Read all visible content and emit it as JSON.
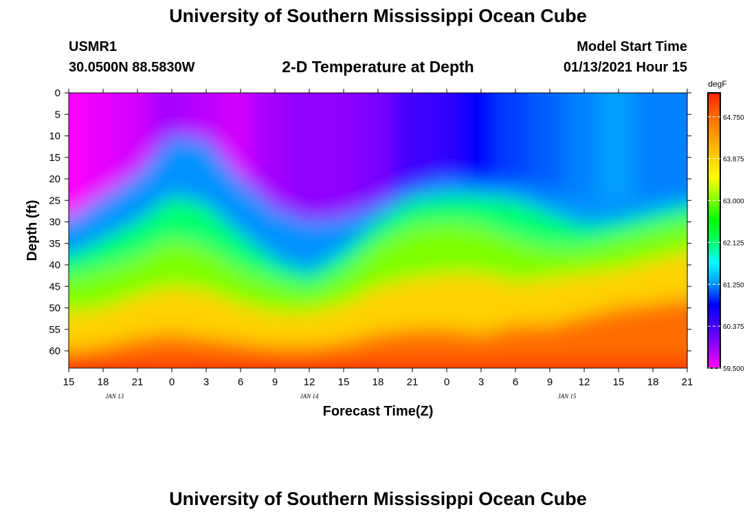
{
  "page": {
    "title_top": "University of Southern Mississippi Ocean Cube",
    "title_bottom": "University of Southern Mississippi Ocean Cube",
    "station_id": "USMR1",
    "station_coords": "30.0500N 88.5830W",
    "plot_title": "2-D Temperature at Depth",
    "model_start_label": "Model Start Time",
    "model_start_value": "01/13/2021 Hour 15"
  },
  "chart_data": {
    "type": "heatmap",
    "title": "2-D Temperature at Depth",
    "xlabel": "Forecast Time(Z)",
    "ylabel": "Depth (ft)",
    "x_tick_labels": [
      "15",
      "18",
      "21",
      "0",
      "3",
      "6",
      "9",
      "12",
      "15",
      "18",
      "21",
      "0",
      "3",
      "6",
      "9",
      "12",
      "15",
      "18",
      "21"
    ],
    "x_range_hours": [
      0,
      54
    ],
    "date_labels": [
      {
        "text": "JAN 13",
        "hour": 4
      },
      {
        "text": "JAN 14",
        "hour": 21
      },
      {
        "text": "JAN 15",
        "hour": 43.5
      }
    ],
    "y_ticks": [
      0,
      5,
      10,
      15,
      20,
      25,
      30,
      35,
      40,
      45,
      50,
      55,
      60
    ],
    "y_range": [
      0,
      64
    ],
    "colorbar": {
      "unit": "degF",
      "range": [
        59.5,
        65.25
      ],
      "tick_labels": [
        "64.750",
        "63.875",
        "63.000",
        "62.125",
        "61.250",
        "60.375",
        "59.500"
      ],
      "tick_values": [
        64.75,
        63.875,
        63.0,
        62.125,
        61.25,
        60.375,
        59.5
      ],
      "colors": [
        "#ff00ff",
        "#9900ff",
        "#4400ff",
        "#0000ff",
        "#0099ff",
        "#00ffff",
        "#00ff66",
        "#00ff00",
        "#88ff00",
        "#ffff00",
        "#ffcc00",
        "#ff9900",
        "#ff6600",
        "#ff2200"
      ]
    },
    "isotherm_depths_ft": {
      "hours": [
        0,
        3,
        6,
        9,
        12,
        15,
        18,
        21,
        24,
        27,
        30,
        33,
        36,
        39,
        42,
        45,
        48,
        51,
        54
      ],
      "t_61_25": [
        29,
        24,
        19,
        10,
        11,
        20,
        27,
        30,
        29,
        26,
        22,
        20,
        21,
        21,
        23,
        24,
        25,
        24,
        24
      ],
      "t_62_125": [
        38,
        34,
        30,
        24,
        26,
        33,
        39,
        42,
        37,
        30,
        25,
        24,
        24,
        25,
        28,
        31,
        30,
        28,
        26
      ],
      "t_63_0": [
        43,
        41,
        38,
        34,
        36,
        41,
        44,
        46,
        42,
        35,
        31,
        30,
        31,
        34,
        36,
        36,
        34,
        32,
        30
      ],
      "t_63_875": [
        51,
        50,
        47,
        45,
        46,
        49,
        51,
        51,
        49,
        45,
        43,
        42,
        42,
        44,
        43,
        42,
        41,
        39,
        37
      ],
      "t_64_75": [
        60,
        59,
        57,
        56,
        57,
        58,
        59,
        59,
        58,
        56,
        55,
        55,
        56,
        54,
        54,
        52,
        50,
        49,
        48
      ]
    },
    "surface_temperature_degF": {
      "hours": [
        0,
        3,
        6,
        9,
        12,
        15,
        18,
        21,
        24,
        27,
        30,
        33,
        36,
        39,
        42,
        45,
        48,
        51,
        54
      ],
      "values": [
        59.5,
        59.6,
        59.7,
        59.9,
        59.8,
        59.7,
        59.9,
        60.0,
        60.0,
        60.1,
        60.4,
        60.5,
        60.8,
        61.0,
        61.1,
        61.2,
        61.3,
        61.2,
        61.1
      ]
    },
    "bottom_temperature_degF": 65.1
  }
}
